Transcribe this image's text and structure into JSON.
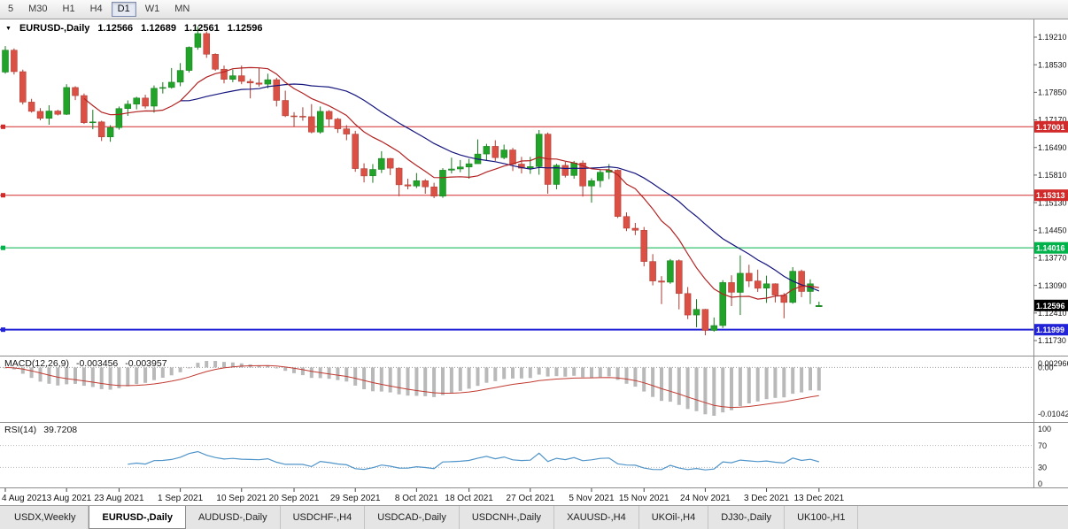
{
  "toolbar": {
    "buttons": [
      {
        "label": "5",
        "selected": false
      },
      {
        "label": "M30",
        "selected": false
      },
      {
        "label": "H1",
        "selected": false
      },
      {
        "label": "H4",
        "selected": false
      },
      {
        "label": "D1",
        "selected": true
      },
      {
        "label": "W1",
        "selected": false
      },
      {
        "label": "MN",
        "selected": false
      }
    ]
  },
  "chart": {
    "title": {
      "collapse_icon": "▼",
      "symbol": "EURUSD-,Daily",
      "open": "1.12566",
      "high": "1.12689",
      "low": "1.12561",
      "close": "1.12596"
    },
    "price_axis_labels": [
      "1.19210",
      "1.18530",
      "1.17850",
      "1.17170",
      "1.16490",
      "1.15810",
      "1.15130",
      "1.14450",
      "1.13770",
      "1.13090",
      "1.12410",
      "1.11730"
    ],
    "h_lines": [
      {
        "label": "1.17001",
        "price": 1.17001,
        "color": "#d22a2a",
        "width": 1
      },
      {
        "label": "1.15313",
        "price": 1.15313,
        "color": "#d22a2a",
        "width": 1
      },
      {
        "label": "1.14016",
        "price": 1.14016,
        "color": "#00b24a",
        "width": 1
      },
      {
        "label": "1.11999",
        "price": 1.11999,
        "color": "#2222d6",
        "width": 2
      }
    ],
    "current_price": {
      "label": "1.12596",
      "price": 1.12596,
      "color": "#000000"
    },
    "date_labels": [
      {
        "text": "4 Aug 2021",
        "i": 0
      },
      {
        "text": "13 Aug 2021",
        "i": 7
      },
      {
        "text": "23 Aug 2021",
        "i": 13
      },
      {
        "text": "1 Sep 2021",
        "i": 20
      },
      {
        "text": "10 Sep 2021",
        "i": 27
      },
      {
        "text": "20 Sep 2021",
        "i": 33
      },
      {
        "text": "29 Sep 2021",
        "i": 40
      },
      {
        "text": "8 Oct 2021",
        "i": 47
      },
      {
        "text": "18 Oct 2021",
        "i": 53
      },
      {
        "text": "27 Oct 2021",
        "i": 60
      },
      {
        "text": "5 Nov 2021",
        "i": 67
      },
      {
        "text": "15 Nov 2021",
        "i": 73
      },
      {
        "text": "24 Nov 2021",
        "i": 80
      },
      {
        "text": "3 Dec 2021",
        "i": 87
      },
      {
        "text": "13 Dec 2021",
        "i": 93
      }
    ],
    "ma": [
      {
        "period": 21,
        "color": "#15157e"
      },
      {
        "period": 10,
        "color": "#b22222"
      }
    ],
    "colors": {
      "up": "#21a329",
      "up_border": "#157a1c",
      "down": "#da5045",
      "down_border": "#a93a31"
    },
    "candles": {
      "o": [
        1.1835,
        1.1889,
        1.1836,
        1.1761,
        1.1738,
        1.1721,
        1.1739,
        1.1731,
        1.1797,
        1.1777,
        1.171,
        1.1712,
        1.1675,
        1.1698,
        1.1745,
        1.1756,
        1.1771,
        1.1751,
        1.1795,
        1.1797,
        1.181,
        1.1839,
        1.1896,
        1.193,
        1.1879,
        1.1842,
        1.1817,
        1.1826,
        1.1812,
        1.1808,
        1.1805,
        1.1816,
        1.1765,
        1.1727,
        1.1726,
        1.1725,
        1.1687,
        1.1738,
        1.1719,
        1.1695,
        1.1682,
        1.1597,
        1.1579,
        1.1595,
        1.1622,
        1.1598,
        1.1557,
        1.1554,
        1.1567,
        1.1552,
        1.1529,
        1.1593,
        1.1596,
        1.1601,
        1.1609,
        1.1633,
        1.1652,
        1.1624,
        1.1643,
        1.1608,
        1.1598,
        1.1602,
        1.1682,
        1.1558,
        1.1605,
        1.158,
        1.1611,
        1.1554,
        1.1567,
        1.1588,
        1.1593,
        1.1479,
        1.145,
        1.1445,
        1.1368,
        1.132,
        1.1317,
        1.137,
        1.1289,
        1.1236,
        1.125,
        1.1198,
        1.121,
        1.1316,
        1.1292,
        1.1339,
        1.132,
        1.1302,
        1.1313,
        1.1285,
        1.1267,
        1.1344,
        1.1294,
        1.12566
      ],
      "h": [
        1.1899,
        1.1893,
        1.1841,
        1.1769,
        1.1746,
        1.1753,
        1.1742,
        1.1805,
        1.18,
        1.1782,
        1.1742,
        1.1715,
        1.1704,
        1.175,
        1.1765,
        1.1774,
        1.1779,
        1.1802,
        1.181,
        1.1845,
        1.1857,
        1.1898,
        1.1947,
        1.1935,
        1.1881,
        1.1851,
        1.1841,
        1.1851,
        1.1818,
        1.1846,
        1.1831,
        1.1821,
        1.1789,
        1.1736,
        1.1748,
        1.1756,
        1.175,
        1.1741,
        1.1722,
        1.1704,
        1.169,
        1.161,
        1.1608,
        1.164,
        1.1623,
        1.16,
        1.1572,
        1.1586,
        1.1571,
        1.1562,
        1.1598,
        1.1624,
        1.1618,
        1.1621,
        1.1669,
        1.1658,
        1.1667,
        1.1656,
        1.1648,
        1.1626,
        1.1626,
        1.1692,
        1.1686,
        1.1609,
        1.1614,
        1.1616,
        1.1617,
        1.1573,
        1.1594,
        1.1608,
        1.1595,
        1.1489,
        1.1463,
        1.1453,
        1.1386,
        1.1332,
        1.1374,
        1.1373,
        1.1305,
        1.1275,
        1.1251,
        1.123,
        1.1322,
        1.1334,
        1.1383,
        1.136,
        1.1348,
        1.1333,
        1.1314,
        1.129,
        1.1354,
        1.1348,
        1.1324,
        1.12689
      ],
      "l": [
        1.1831,
        1.1829,
        1.1755,
        1.1735,
        1.1716,
        1.1705,
        1.1728,
        1.1729,
        1.1766,
        1.1707,
        1.1694,
        1.1665,
        1.1663,
        1.1693,
        1.1727,
        1.1743,
        1.1745,
        1.1735,
        1.1782,
        1.1794,
        1.18,
        1.1834,
        1.189,
        1.187,
        1.1838,
        1.1807,
        1.181,
        1.1805,
        1.177,
        1.1799,
        1.1795,
        1.175,
        1.1724,
        1.17,
        1.1715,
        1.1684,
        1.1683,
        1.1701,
        1.1685,
        1.1667,
        1.1589,
        1.1563,
        1.1562,
        1.1586,
        1.1581,
        1.1529,
        1.1546,
        1.1549,
        1.1535,
        1.1524,
        1.1525,
        1.1585,
        1.1588,
        1.1572,
        1.1609,
        1.1617,
        1.1616,
        1.162,
        1.1591,
        1.1585,
        1.1584,
        1.1582,
        1.1535,
        1.1546,
        1.1575,
        1.1572,
        1.1528,
        1.1513,
        1.1551,
        1.1571,
        1.1475,
        1.1443,
        1.1433,
        1.1356,
        1.1309,
        1.1263,
        1.1313,
        1.125,
        1.1226,
        1.1206,
        1.1186,
        1.1195,
        1.1204,
        1.1258,
        1.1236,
        1.1305,
        1.1293,
        1.1266,
        1.1267,
        1.1228,
        1.1264,
        1.128,
        1.1263,
        1.12561
      ],
      "c": [
        1.1889,
        1.1836,
        1.1761,
        1.1738,
        1.1721,
        1.1739,
        1.1731,
        1.1797,
        1.1777,
        1.171,
        1.1712,
        1.1675,
        1.1698,
        1.1745,
        1.1756,
        1.1771,
        1.1751,
        1.1795,
        1.1797,
        1.181,
        1.1839,
        1.1896,
        1.193,
        1.1879,
        1.1842,
        1.1817,
        1.1826,
        1.1812,
        1.1808,
        1.1805,
        1.1816,
        1.1765,
        1.1727,
        1.1726,
        1.1725,
        1.1687,
        1.1738,
        1.1719,
        1.1695,
        1.1682,
        1.1597,
        1.1579,
        1.1595,
        1.1622,
        1.1598,
        1.1557,
        1.1554,
        1.1567,
        1.1552,
        1.1529,
        1.1593,
        1.1596,
        1.1601,
        1.1609,
        1.1633,
        1.1652,
        1.1624,
        1.1643,
        1.1608,
        1.1598,
        1.1602,
        1.1682,
        1.1558,
        1.1605,
        1.158,
        1.1611,
        1.1554,
        1.1567,
        1.1588,
        1.1593,
        1.1479,
        1.145,
        1.1445,
        1.1368,
        1.132,
        1.1317,
        1.137,
        1.1289,
        1.1236,
        1.125,
        1.1198,
        1.121,
        1.1316,
        1.1292,
        1.1339,
        1.132,
        1.1302,
        1.1313,
        1.1285,
        1.1267,
        1.1344,
        1.1294,
        1.1313,
        1.12596
      ]
    }
  },
  "macd": {
    "name": "MACD(12,26,9)",
    "value": "-0.003456",
    "signal_value": "-0.003957",
    "fast": 12,
    "slow": 26,
    "signal": 9,
    "axis": {
      "top": "0.002966",
      "zero": "0.00",
      "bottom": "-0.01042"
    },
    "bar_color": "#b9b9b9",
    "line_color": "#c23b32"
  },
  "rsi": {
    "name": "RSI(14)",
    "value": "39.7208",
    "period": 14,
    "axis": [
      {
        "label": "100",
        "value": 100
      },
      {
        "label": "70",
        "value": 70
      },
      {
        "label": "30",
        "value": 30
      },
      {
        "label": "0",
        "value": 0
      }
    ],
    "levels": [
      70,
      30
    ],
    "line_color": "#4f94c9"
  },
  "tabs": [
    {
      "label": "USDX,Weekly",
      "active": false
    },
    {
      "label": "EURUSD-,Daily",
      "active": true
    },
    {
      "label": "AUDUSD-,Daily",
      "active": false
    },
    {
      "label": "USDCHF-,H4",
      "active": false
    },
    {
      "label": "USDCAD-,Daily",
      "active": false
    },
    {
      "label": "USDCNH-,Daily",
      "active": false
    },
    {
      "label": "XAUUSD-,H4",
      "active": false
    },
    {
      "label": "UKOil-,H4",
      "active": false
    },
    {
      "label": "DJ30-,Daily",
      "active": false
    },
    {
      "label": "UK100-,H1",
      "active": false
    }
  ]
}
